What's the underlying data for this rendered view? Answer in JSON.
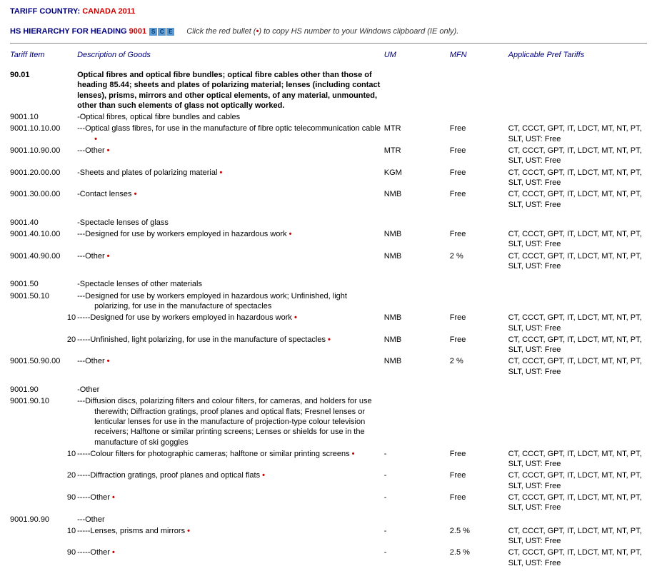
{
  "header": {
    "tariff_label": "TARIFF COUNTRY:",
    "country": "CANADA 2011",
    "hier_label": "HS HIERARCHY FOR HEADING",
    "heading_no": "9001",
    "icons": [
      "S",
      "C",
      "E"
    ],
    "hint_pre": "Click the red bullet (",
    "hint_bullet": "•",
    "hint_post": ") to copy HS number to your Windows clipboard (IE only)."
  },
  "columns": {
    "item": "Tariff Item",
    "desc": "Description of Goods",
    "um": "UM",
    "mfn": "MFN",
    "pref": "Applicable Pref Tariffs"
  },
  "pref_text": "CT, CCCT, GPT, IT, LDCT, MT, NT, PT, SLT, UST: Free",
  "rows": [
    {
      "item": "90.01",
      "bold": true,
      "desc": "Optical fibres and optical fibre bundles; optical fibre cables other than those of heading 85.44; sheets and plates of polarizing material; lenses (including contact lenses), prisms, mirrors and other optical elements, of any material, unmounted, other than such elements of glass not optically worked.",
      "um": "",
      "mfn": "",
      "pref": ""
    },
    {
      "item": "9001.10",
      "desc": "-Optical fibres, optical fibre bundles and cables",
      "um": "",
      "mfn": "",
      "pref": ""
    },
    {
      "item": "9001.10.10.00",
      "desc": "---Optical glass fibres, for use in the manufacture of fibre optic telecommunication cable",
      "bullet": true,
      "indent": 2,
      "um": "MTR",
      "mfn": "Free",
      "pref": "@"
    },
    {
      "item": "9001.10.90.00",
      "desc": "---Other",
      "bullet": true,
      "um": "MTR",
      "mfn": "Free",
      "pref": "@"
    },
    {
      "item": "9001.20.00.00",
      "desc": "-Sheets and plates of polarizing material",
      "bullet": true,
      "um": "KGM",
      "mfn": "Free",
      "pref": "@"
    },
    {
      "item": "9001.30.00.00",
      "desc": "-Contact lenses",
      "bullet": true,
      "um": "NMB",
      "mfn": "Free",
      "pref": "@"
    },
    {
      "item": "9001.40",
      "desc": "-Spectacle lenses of glass",
      "um": "",
      "mfn": "",
      "pref": "",
      "topgap": true
    },
    {
      "item": "9001.40.10.00",
      "desc": "---Designed for use by workers employed in hazardous work",
      "bullet": true,
      "um": "NMB",
      "mfn": "Free",
      "pref": "@"
    },
    {
      "item": "9001.40.90.00",
      "desc": "---Other",
      "bullet": true,
      "um": "NMB",
      "mfn": "2 %",
      "pref": "@"
    },
    {
      "item": "9001.50",
      "desc": "-Spectacle lenses of other materials",
      "um": "",
      "mfn": "",
      "pref": "",
      "topgap": true
    },
    {
      "item": "9001.50.10",
      "desc": "---Designed for use by workers employed in hazardous work; Unfinished, light polarizing, for use in the manufacture of spectacles",
      "indent": 2,
      "um": "",
      "mfn": "",
      "pref": ""
    },
    {
      "item": "",
      "sub": "10",
      "desc": "-----Designed for use by workers employed in hazardous work",
      "bullet": true,
      "um": "NMB",
      "mfn": "Free",
      "pref": "@"
    },
    {
      "item": "",
      "sub": "20",
      "desc": "-----Unfinished, light polarizing, for use in the manufacture of spectacles",
      "bullet": true,
      "um": "NMB",
      "mfn": "Free",
      "pref": "@"
    },
    {
      "item": "9001.50.90.00",
      "desc": "---Other",
      "bullet": true,
      "um": "NMB",
      "mfn": "2 %",
      "pref": "@"
    },
    {
      "item": "9001.90",
      "desc": "-Other",
      "um": "",
      "mfn": "",
      "pref": "",
      "topgap": true
    },
    {
      "item": "9001.90.10",
      "desc": "---Diffusion discs, polarizing filters and colour filters, for cameras, and holders for use therewith; Diffraction gratings, proof planes and optical flats; Fresnel lenses or lenticular lenses for use in the manufacture of projection-type colour television receivers; Halftone or similar printing screens; Lenses or shields for use in the manufacture of ski goggles",
      "indent": 2,
      "um": "",
      "mfn": "",
      "pref": ""
    },
    {
      "item": "",
      "sub": "10",
      "desc": "-----Colour filters for photographic cameras; halftone or similar printing screens",
      "bullet": true,
      "indent": 2,
      "um": "-",
      "mfn": "Free",
      "pref": "@"
    },
    {
      "item": "",
      "sub": "20",
      "desc": "-----Diffraction gratings, proof planes and optical flats",
      "bullet": true,
      "um": "-",
      "mfn": "Free",
      "pref": "@"
    },
    {
      "item": "",
      "sub": "90",
      "desc": "-----Other",
      "bullet": true,
      "um": "-",
      "mfn": "Free",
      "pref": "@"
    },
    {
      "item": "9001.90.90",
      "desc": "---Other",
      "um": "",
      "mfn": "",
      "pref": ""
    },
    {
      "item": "",
      "sub": "10",
      "desc": "-----Lenses, prisms and mirrors",
      "bullet": true,
      "um": "-",
      "mfn": "2.5 %",
      "pref": "@"
    },
    {
      "item": "",
      "sub": "90",
      "desc": "-----Other",
      "bullet": true,
      "um": "-",
      "mfn": "2.5 %",
      "pref": "@"
    }
  ]
}
